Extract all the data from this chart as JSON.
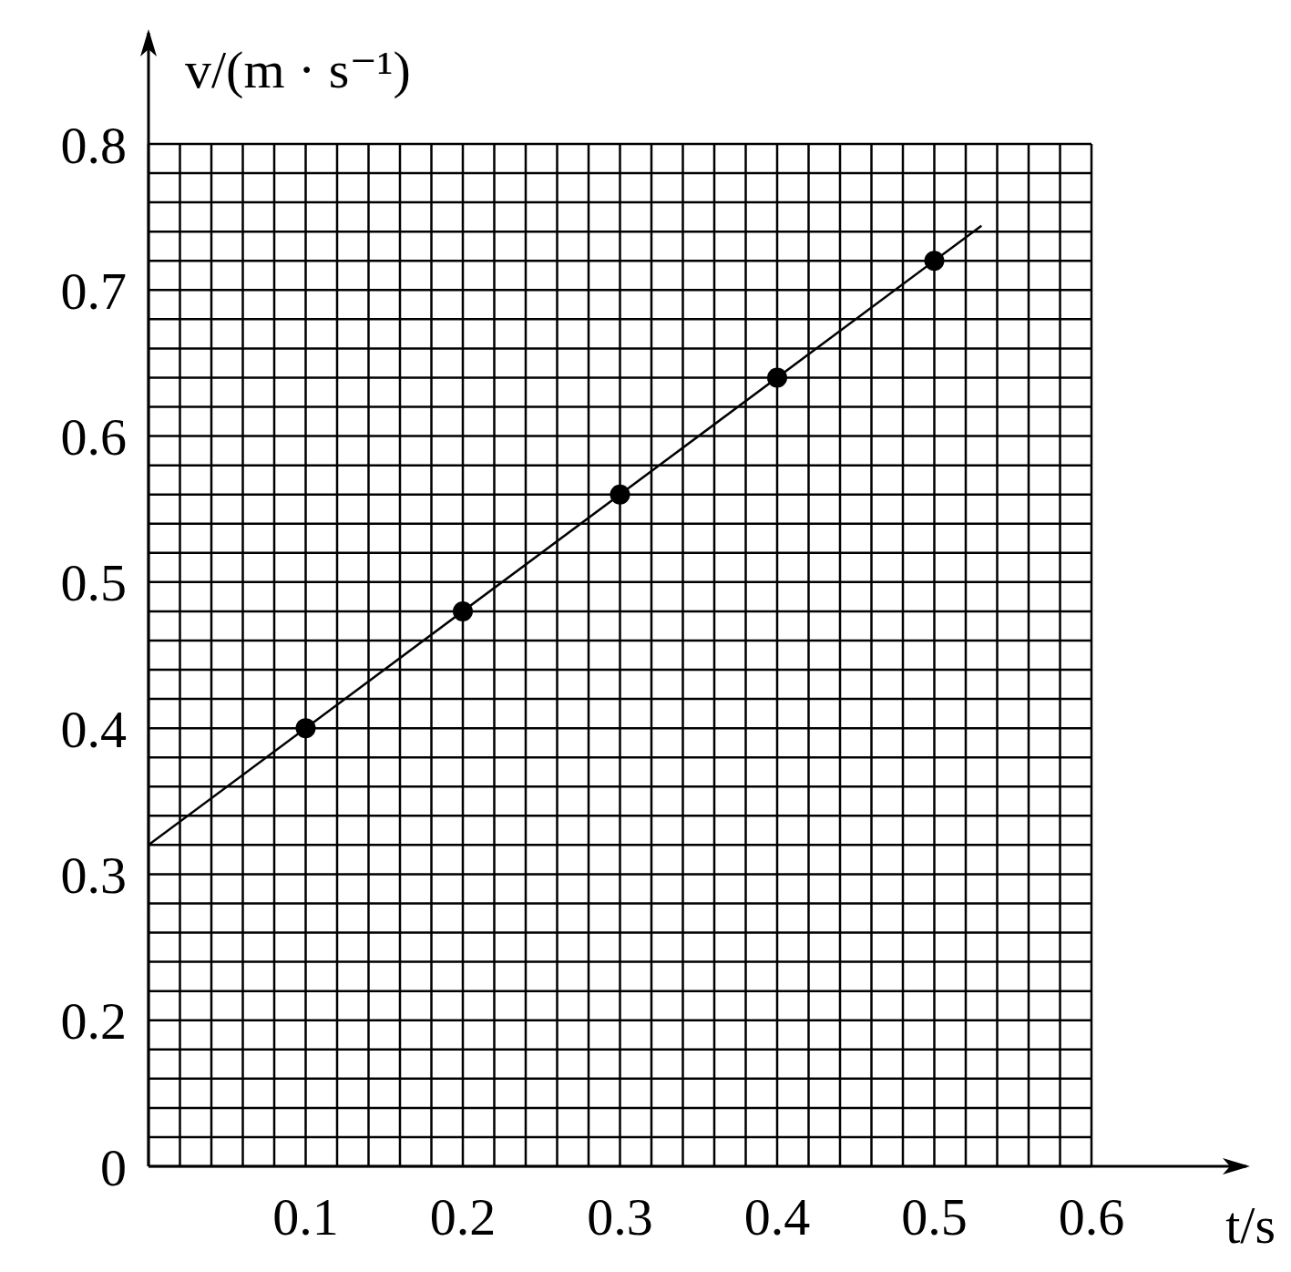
{
  "chart_data": {
    "type": "scatter",
    "xlabel": "t/s",
    "ylabel": "v/(m · s⁻¹)",
    "series": [
      {
        "color": "#000000",
        "marker": "circle",
        "x": [
          0.1,
          0.2,
          0.3,
          0.4,
          0.5
        ],
        "values": [
          0.4,
          0.48,
          0.56,
          0.64,
          0.72
        ]
      },
      {
        "type": "line",
        "color": "#000000",
        "line_style": "solid",
        "marker": "none",
        "x": [
          0,
          0.53
        ],
        "values": [
          0.32,
          0.744
        ]
      }
    ],
    "xlim": [
      0,
      0.6
    ],
    "ylim": [
      0.1,
      0.8
    ],
    "xticks": [
      {
        "value": 0,
        "label": null
      },
      {
        "value": 0.02,
        "label": null
      },
      {
        "value": 0.04,
        "label": null
      },
      {
        "value": 0.06,
        "label": null
      },
      {
        "value": 0.08,
        "label": null
      },
      0.1,
      {
        "value": 0.12,
        "label": null
      },
      {
        "value": 0.14,
        "label": null
      },
      {
        "value": 0.16,
        "label": null
      },
      {
        "value": 0.18,
        "label": null
      },
      0.2,
      {
        "value": 0.22,
        "label": null
      },
      {
        "value": 0.24,
        "label": null
      },
      {
        "value": 0.26,
        "label": null
      },
      {
        "value": 0.28,
        "label": null
      },
      0.3,
      {
        "value": 0.32,
        "label": null
      },
      {
        "value": 0.34,
        "label": null
      },
      {
        "value": 0.36,
        "label": null
      },
      {
        "value": 0.38,
        "label": null
      },
      0.4,
      {
        "value": 0.42,
        "label": null
      },
      {
        "value": 0.44,
        "label": null
      },
      {
        "value": 0.46,
        "label": null
      },
      {
        "value": 0.48,
        "label": null
      },
      0.5,
      {
        "value": 0.52,
        "label": null
      },
      {
        "value": 0.54,
        "label": null
      },
      {
        "value": 0.56,
        "label": null
      },
      {
        "value": 0.58,
        "label": null
      },
      0.6
    ],
    "yticks": [
      {
        "value": 0.1,
        "label": "0"
      },
      {
        "value": 0.12,
        "label": null
      },
      {
        "value": 0.14,
        "label": null
      },
      {
        "value": 0.16,
        "label": null
      },
      {
        "value": 0.18,
        "label": null
      },
      0.2,
      {
        "value": 0.22,
        "label": null
      },
      {
        "value": 0.24,
        "label": null
      },
      {
        "value": 0.26,
        "label": null
      },
      {
        "value": 0.28,
        "label": null
      },
      0.3,
      {
        "value": 0.32,
        "label": null
      },
      {
        "value": 0.34,
        "label": null
      },
      {
        "value": 0.36,
        "label": null
      },
      {
        "value": 0.38,
        "label": null
      },
      0.4,
      {
        "value": 0.42,
        "label": null
      },
      {
        "value": 0.44,
        "label": null
      },
      {
        "value": 0.46,
        "label": null
      },
      {
        "value": 0.48,
        "label": null
      },
      0.5,
      {
        "value": 0.52,
        "label": null
      },
      {
        "value": 0.54,
        "label": null
      },
      {
        "value": 0.56,
        "label": null
      },
      {
        "value": 0.58,
        "label": null
      },
      0.6,
      {
        "value": 0.62,
        "label": null
      },
      {
        "value": 0.64,
        "label": null
      },
      {
        "value": 0.66,
        "label": null
      },
      {
        "value": 0.68,
        "label": null
      },
      0.7,
      {
        "value": 0.72,
        "label": null
      },
      {
        "value": 0.74,
        "label": null
      },
      {
        "value": 0.76,
        "label": null
      },
      {
        "value": 0.78,
        "label": null
      },
      0.8
    ],
    "grid": true,
    "legend": false
  }
}
